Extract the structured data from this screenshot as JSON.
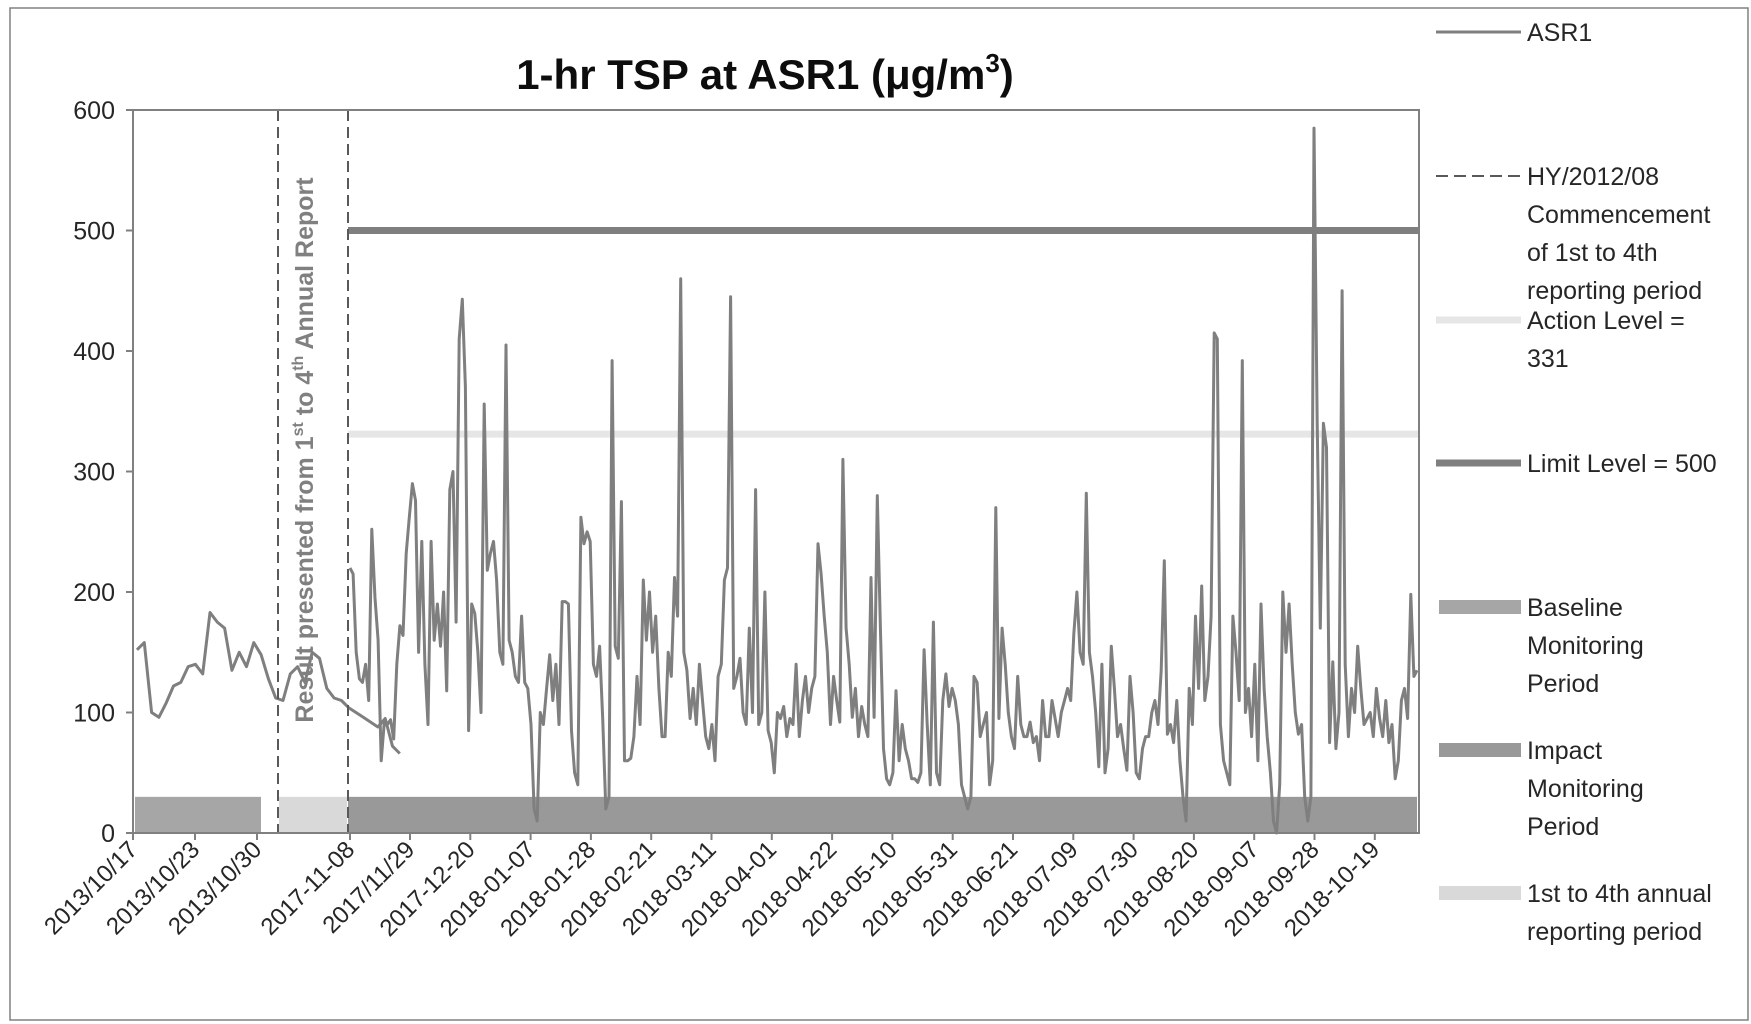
{
  "chart_data": {
    "type": "line",
    "title": "1-hr TSP at ASR1 (μg/m³)",
    "title_main": "1-hr TSP at ASR1 (μg/m",
    "title_sup": "3",
    "title_end": ")",
    "ylim": [
      0,
      600
    ],
    "y_ticks": [
      "0",
      "100",
      "200",
      "300",
      "400",
      "500",
      "600"
    ],
    "x_tick_labels": [
      "2013/10/17",
      "2013/10/23",
      "2013/10/30",
      "2017-11-08",
      "2017/11/29",
      "2017-12-20",
      "2018-01-07",
      "2018-01-28",
      "2018-02-21",
      "2018-03-11",
      "2018-04-01",
      "2018-04-22",
      "2018-05-10",
      "2018-05-31",
      "2018-06-21",
      "2018-07-09",
      "2018-07-30",
      "2018-08-20",
      "2018-09-07",
      "2018-09-28",
      "2018-10-19"
    ],
    "annotation": {
      "before": "Result presented from 1",
      "sup1": "st",
      "middle": " to 4",
      "sup2": "th",
      "after": " Annual Report"
    },
    "series": [
      {
        "name": "ASR1",
        "color": "#7f7f7f",
        "segments": [
          [
            152,
            158,
            100,
            96,
            108,
            122,
            125,
            138,
            140,
            132,
            183,
            175,
            170,
            135,
            150,
            138,
            158,
            148,
            128,
            112,
            110,
            132,
            138,
            125,
            150,
            145,
            120,
            112,
            110,
            104,
            100,
            96,
            92,
            88,
            95,
            72,
            66
          ],
          [
            220,
            215,
            150,
            128,
            125,
            140,
            110,
            252,
            195,
            160,
            60,
            92,
            90,
            94,
            78,
            140,
            172,
            164,
            232,
            262,
            290,
            276,
            150,
            242,
            140,
            90,
            242,
            160,
            190,
            155,
            200,
            118,
            285,
            300,
            175,
            410,
            443,
            370,
            85,
            190,
            182,
            150,
            100,
            356,
            218,
            232,
            242,
            210,
            150,
            140,
            405,
            160,
            150,
            130,
            125,
            180,
            125,
            120,
            90,
            20,
            10,
            100,
            90,
            120,
            148,
            110,
            140,
            90,
            192,
            192,
            190,
            85,
            50,
            40,
            262,
            240,
            250,
            242,
            140,
            130,
            155,
            95,
            20,
            30,
            392,
            155,
            145,
            275,
            60,
            60,
            62,
            80,
            130,
            90,
            210,
            160,
            200,
            150,
            180,
            120,
            80,
            80,
            150,
            130,
            212,
            180,
            460,
            150,
            135,
            95,
            120,
            90,
            140,
            110,
            80,
            70,
            90,
            60,
            130,
            140,
            210,
            220,
            445,
            120,
            130,
            145,
            100,
            90,
            170,
            100,
            285,
            90,
            100,
            200,
            85,
            75,
            50,
            100,
            95,
            105,
            80,
            95,
            90,
            140,
            80,
            110,
            130,
            100,
            120,
            130,
            240,
            215,
            180,
            150,
            90,
            130,
            110,
            92,
            310,
            170,
            140,
            96,
            120,
            80,
            105,
            90,
            80,
            212,
            96,
            280,
            170,
            70,
            45,
            40,
            50,
            118,
            60,
            90,
            70,
            60,
            45,
            45,
            42,
            50,
            152,
            90,
            40,
            175,
            50,
            40,
            110,
            132,
            105,
            120,
            110,
            90,
            40,
            30,
            20,
            30,
            130,
            125,
            80,
            90,
            100,
            40,
            60,
            270,
            95,
            170,
            140,
            100,
            80,
            70,
            130,
            90,
            80,
            80,
            92,
            75,
            80,
            60,
            110,
            80,
            80,
            110,
            95,
            80,
            100,
            110,
            120,
            110,
            165,
            200,
            150,
            140,
            282,
            150,
            130,
            100,
            55,
            140,
            50,
            70,
            155,
            120,
            80,
            90,
            70,
            52,
            130,
            100,
            50,
            45,
            70,
            80,
            80,
            100,
            110,
            90,
            135,
            226,
            82,
            90,
            75,
            110,
            60,
            30,
            10,
            120,
            90,
            180,
            120,
            205,
            110,
            130,
            180,
            415,
            410,
            90,
            60,
            50,
            40,
            180,
            150,
            110,
            392,
            100,
            120,
            80,
            140,
            60,
            190,
            120,
            80,
            50,
            10,
            0,
            40,
            200,
            150,
            190,
            140,
            100,
            82,
            90,
            30,
            10,
            30,
            585,
            340,
            170,
            340,
            320,
            75,
            142,
            70,
            100,
            450,
            140,
            80,
            120,
            100,
            155,
            120,
            90,
            95,
            100,
            80,
            120,
            95,
            80,
            110,
            75,
            90,
            45,
            60,
            110,
            120,
            95,
            198,
            130,
            135
          ]
        ]
      },
      {
        "name": "HY/2012/08 Commencement of 1st to 4th reporting period",
        "color": "#595959",
        "dashed": true
      },
      {
        "name": "Action Level = 331",
        "color": "#e6e6e6",
        "value": 331
      },
      {
        "name": "Limit Level = 500",
        "color": "#7f7f7f",
        "value": 500
      },
      {
        "name": "Baseline Monitoring Period",
        "color": "#a6a6a6"
      },
      {
        "name": "Impact Monitoring Period",
        "color": "#999999"
      },
      {
        "name": "1st to 4th annual reporting period",
        "color": "#d9d9d9"
      }
    ],
    "legend": {
      "placement": "right",
      "entries": [
        {
          "lines": [
            "ASR1"
          ]
        },
        {
          "lines": [
            "HY/2012/08",
            "Commencement",
            "of 1st to 4th",
            "reporting period"
          ]
        },
        {
          "lines": [
            "Action Level =",
            "331"
          ]
        },
        {
          "lines": [
            "Limit Level = 500"
          ]
        },
        {
          "lines": [
            "Baseline",
            "Monitoring",
            "Period"
          ]
        },
        {
          "lines": [
            "Impact",
            "Monitoring",
            "Period"
          ]
        },
        {
          "lines": [
            "1st to 4th annual",
            "reporting period"
          ]
        }
      ]
    },
    "colors": {
      "plot_border": "#808080",
      "axis_text": "#262626",
      "title": "#0d0d0d",
      "annotation_text": "#808080"
    }
  }
}
